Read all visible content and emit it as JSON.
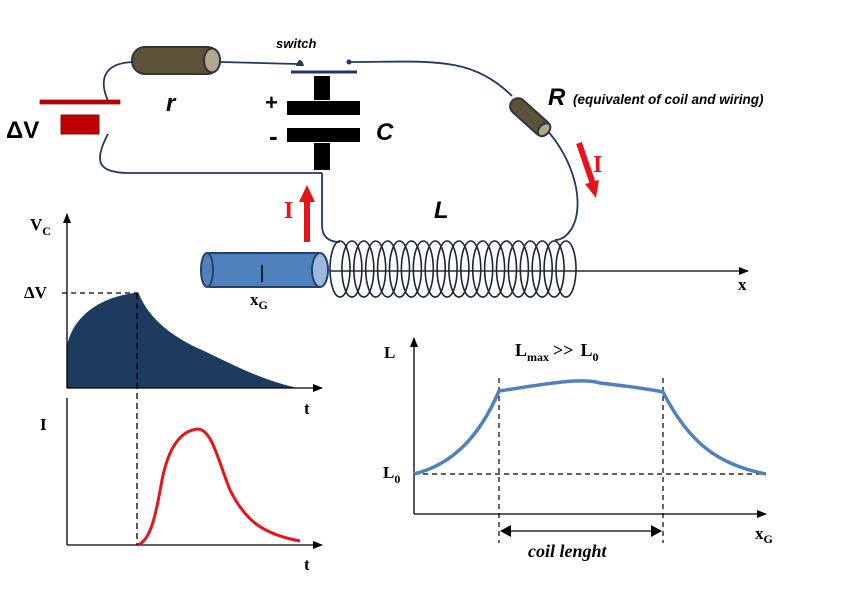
{
  "circuit": {
    "switch_label": "switch",
    "r_label": "r",
    "R_label": "R",
    "R_note": "(equivalent of coil and wiring)",
    "C_label": "C",
    "L_label": "L",
    "dV_label": "ΔV",
    "plus_sign": "+",
    "minus_sign": "-",
    "current_label_left": "I",
    "current_label_right": "I",
    "axis_x_label": "x",
    "xg_main": "x",
    "xg_sub": "G"
  },
  "graph_vc": {
    "y_main": "V",
    "y_sub": "C",
    "dv_tick": "ΔV",
    "x_label": "t"
  },
  "graph_i": {
    "y_label": "I",
    "x_label": "t"
  },
  "graph_L": {
    "y_label": "L",
    "l0_main": "L",
    "l0_sub": "0",
    "lmax_main": "L",
    "lmax_sub": "max",
    "relation": ">>",
    "l0b_main": "L",
    "l0b_sub": "0",
    "x_main": "x",
    "x_sub": "G",
    "coil_length_label": "coil lenght"
  },
  "colors": {
    "wire": "#1f3864",
    "capacitor_plate": "#000000",
    "resistor_body": "#5b5237",
    "resistor_edge": "#2e3440",
    "battery_red": "#c00000",
    "arrow_red": "#e8141c",
    "core_blue": "#4f81bd",
    "core_dark": "#23416b",
    "coil": "#1b2636",
    "vc_fill": "#1c3b5e",
    "current_curve": "#e8141c",
    "L_curve": "#4f81bd"
  }
}
